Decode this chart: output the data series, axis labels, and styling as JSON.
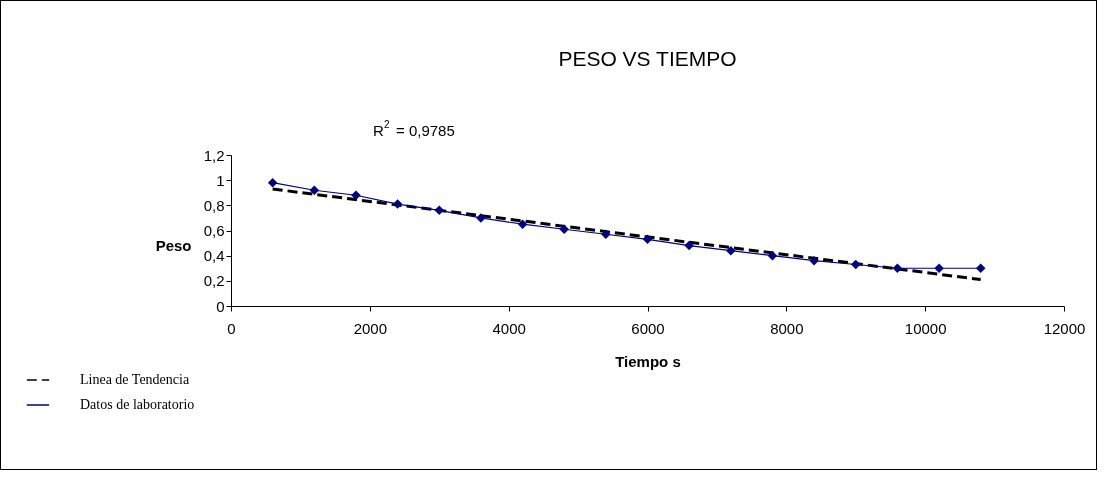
{
  "chart_data": {
    "type": "line",
    "title": "PESO VS TIEMPO",
    "xlabel": "Tiempo s",
    "ylabel": "Peso",
    "annotations": [
      "R$^{2}$ = 0,9785"
    ],
    "xlim": [
      0,
      12000
    ],
    "xticks": [
      0,
      2000,
      4000,
      6000,
      8000,
      10000,
      12000
    ],
    "ylim": [
      0,
      1.2
    ],
    "yticks": [
      0,
      {
        "value": 0.2,
        "label": "0,2"
      },
      {
        "value": 0.4,
        "label": "0,4"
      },
      {
        "value": 0.6,
        "label": "0,6"
      },
      {
        "value": 0.8,
        "label": "0,8"
      },
      1,
      {
        "value": 1.2,
        "label": "1,2"
      }
    ],
    "grid": false,
    "legend": "bottom left",
    "series": [
      {
        "name": "Linea de Tendencia",
        "color": "#000000",
        "line_style": "dashed",
        "marker": "none",
        "x": [
          600,
          10800
        ],
        "values": [
          0.93,
          0.21
        ]
      },
      {
        "name": "Datos de laboratorio",
        "color": "#000080",
        "line_style": "solid",
        "marker": "diamond",
        "x": [
          600,
          1200,
          1800,
          2400,
          3000,
          3600,
          4200,
          4800,
          5400,
          6000,
          6600,
          7200,
          7800,
          8400,
          9000,
          9600,
          10200,
          10800
        ],
        "values": [
          0.98,
          0.92,
          0.88,
          0.81,
          0.76,
          0.7,
          0.65,
          0.61,
          0.57,
          0.53,
          0.48,
          0.44,
          0.4,
          0.36,
          0.33,
          0.3,
          0.3,
          0.3
        ]
      }
    ]
  }
}
